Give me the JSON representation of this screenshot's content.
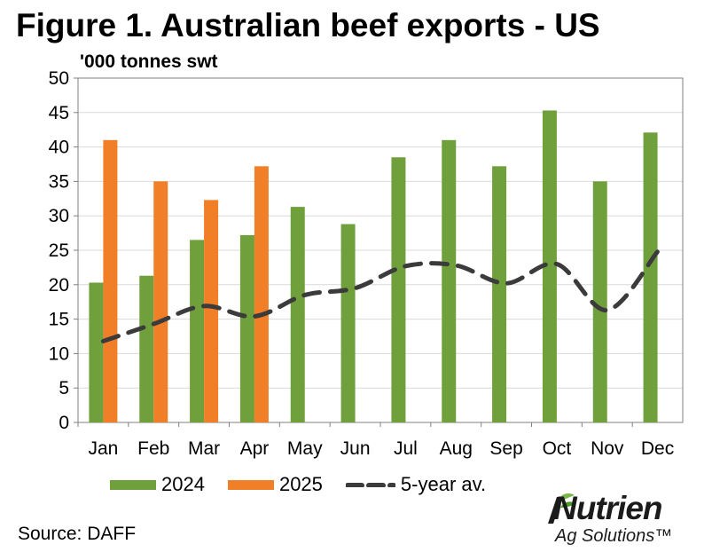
{
  "title": "Figure 1. Australian beef exports - US",
  "source": "Source: DAFF",
  "logo": {
    "name": "Nutrien",
    "sub": "Ag Solutions™"
  },
  "colors": {
    "s2024": "#70a03c",
    "s2025": "#f07f27",
    "avg": "#3b3b3b",
    "grid": "#d9d9d9"
  },
  "chart_data": {
    "type": "bar",
    "title": "Figure 1. Australian beef exports - US",
    "ylabel": "'000 tonnes swt",
    "xlabel": "",
    "ylim": [
      0,
      50
    ],
    "yticks": [
      0,
      5,
      10,
      15,
      20,
      25,
      30,
      35,
      40,
      45,
      50
    ],
    "categories": [
      "Jan",
      "Feb",
      "Mar",
      "Apr",
      "May",
      "Jun",
      "Jul",
      "Aug",
      "Sep",
      "Oct",
      "Nov",
      "Dec"
    ],
    "series": [
      {
        "name": "2024",
        "kind": "bar",
        "values": [
          20.3,
          21.3,
          26.5,
          27.2,
          31.3,
          28.8,
          38.5,
          41.0,
          37.2,
          45.3,
          35.0,
          42.1
        ]
      },
      {
        "name": "2025",
        "kind": "bar",
        "values": [
          41.0,
          35.0,
          32.3,
          37.2,
          null,
          null,
          null,
          null,
          null,
          null,
          null,
          null
        ]
      },
      {
        "name": "5-year av.",
        "kind": "line",
        "style": "dashed",
        "values": [
          11.8,
          14.3,
          16.9,
          15.4,
          18.5,
          19.5,
          22.7,
          22.8,
          20.2,
          23.0,
          16.3,
          24.8
        ]
      }
    ],
    "grid": true,
    "legend_position": "bottom"
  }
}
